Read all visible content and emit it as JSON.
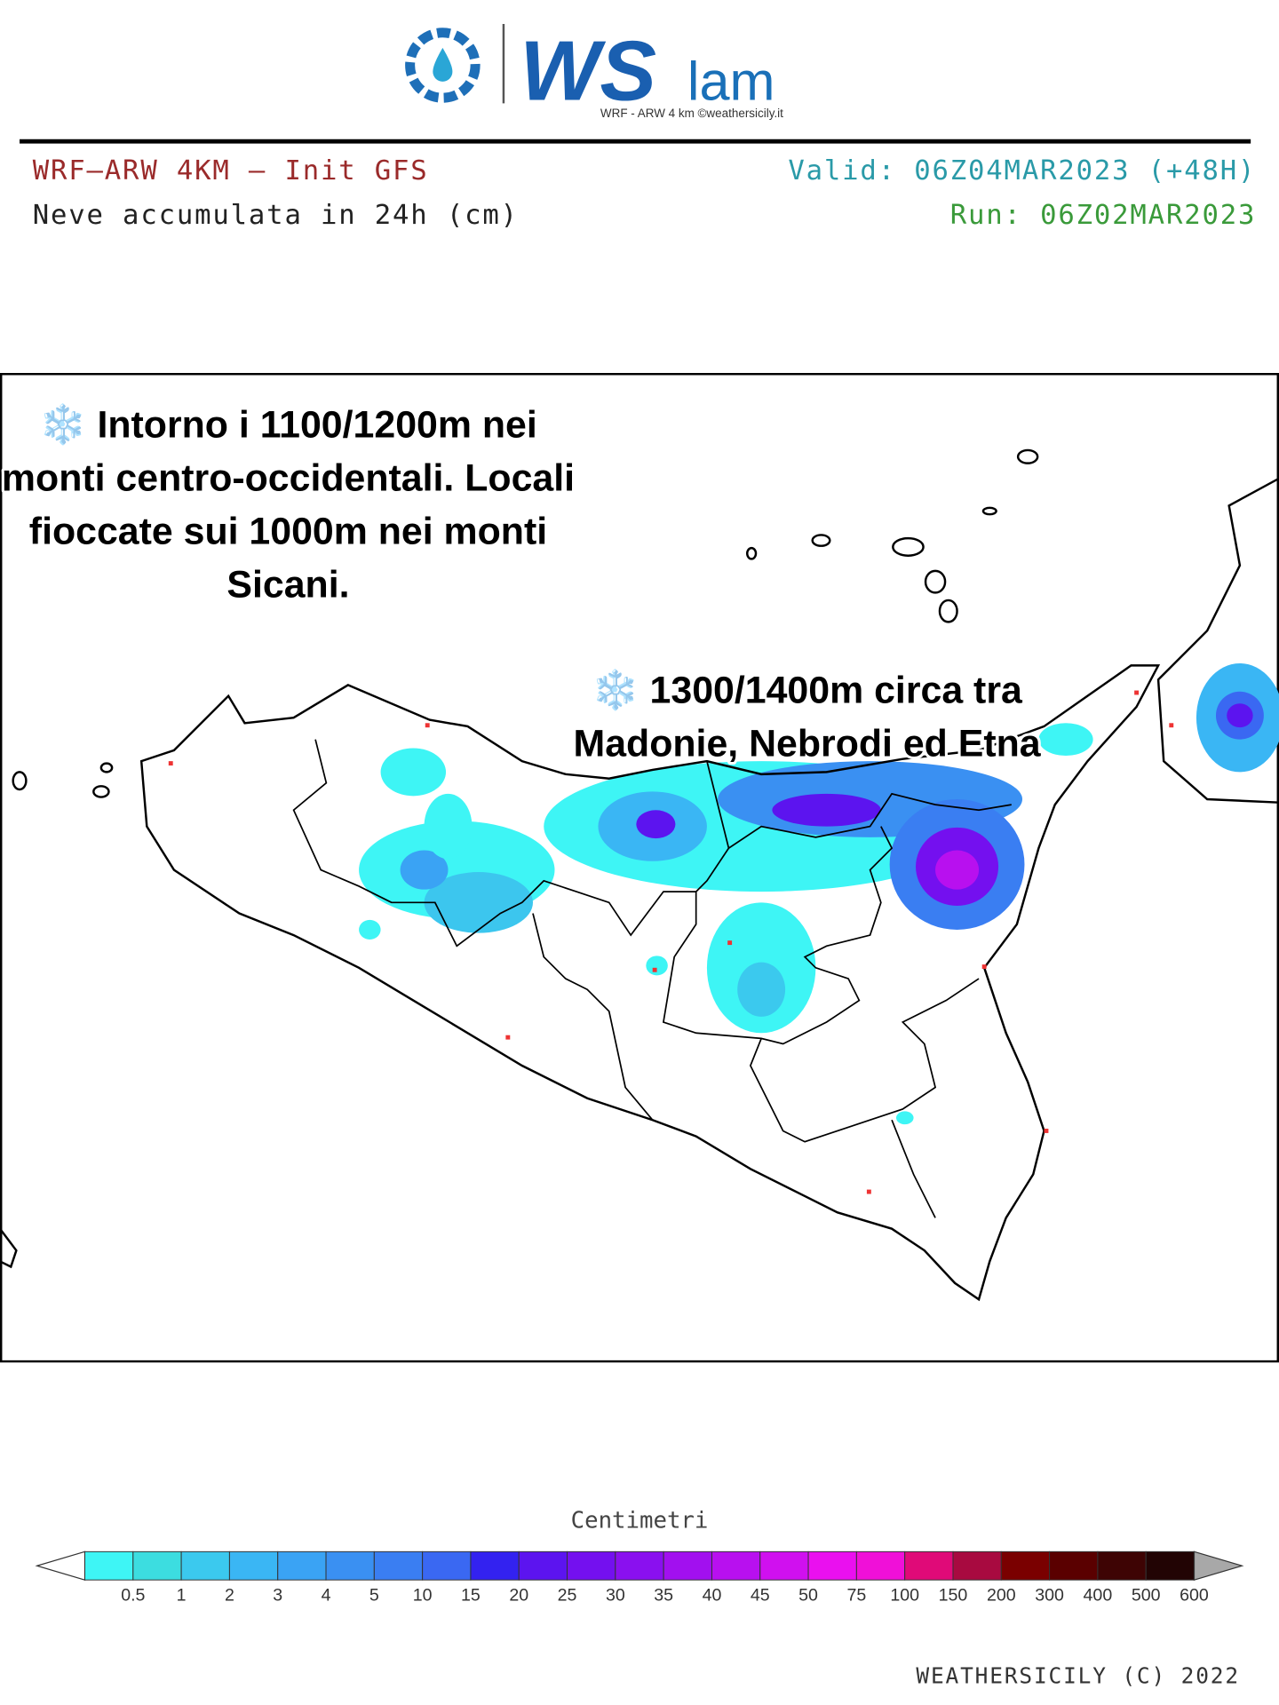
{
  "header": {
    "logo": {
      "brand": "WS",
      "suffix": "lam",
      "tagline": "WRF - ARW 4 km ©weathersicily.it"
    },
    "model": "WRF–ARW 4KM – Init GFS",
    "field": "Neve accumulata in 24h (cm)",
    "valid": "Valid: 06Z04MAR2023 (+48H)",
    "run": "Run: 06Z02MAR2023"
  },
  "map": {
    "annotations": [
      {
        "lines": [
          "❄️ Intorno i 1100/1200m nei",
          "monti centro-occidentali. Locali",
          "fioccate sui 1000m nei monti",
          "Sicani."
        ]
      },
      {
        "lines": [
          "❄️ 1300/1400m circa tra",
          "Madonie, Nebrodi ed Etna"
        ]
      }
    ]
  },
  "legend": {
    "title": "Centimetri",
    "ticks": [
      0.5,
      1,
      2,
      3,
      4,
      5,
      10,
      15,
      20,
      25,
      30,
      35,
      40,
      45,
      50,
      75,
      100,
      150,
      200,
      300,
      400,
      500,
      600
    ],
    "colors": [
      "#3ef5f5",
      "#3cdde0",
      "#3bc9ee",
      "#3ab6f4",
      "#3aa3f4",
      "#3a90f2",
      "#3a7ef2",
      "#3a68f2",
      "#3322f0",
      "#5c14ef",
      "#7410ef",
      "#8a10ef",
      "#a210ef",
      "#b810ef",
      "#d010ef",
      "#ea10ef",
      "#f010d8",
      "#e00a78",
      "#a80a40",
      "#7a0000",
      "#5a0000",
      "#3e0404",
      "#220404"
    ]
  },
  "footer": "WEATHERSICILY (C) 2022"
}
